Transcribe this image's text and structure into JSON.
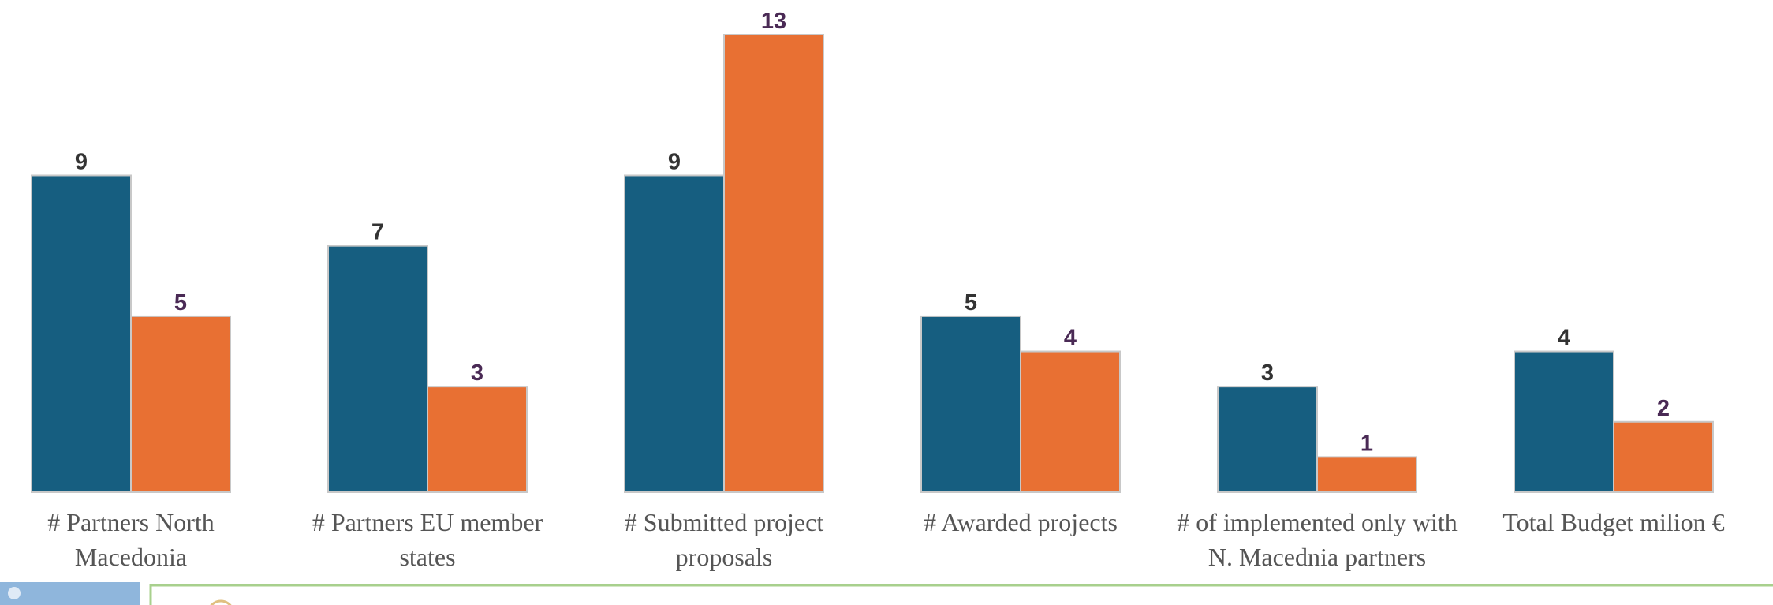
{
  "chart_data": {
    "type": "bar",
    "categories": [
      "# Partners North Macedonia",
      "# Partners EU member states",
      "# Submitted project proposals",
      "# Awarded projects",
      "# of implemented only with N. Macednia partners",
      "Total Budget milion €"
    ],
    "series": [
      {
        "color": "#165e80",
        "values": [
          9,
          7,
          9,
          5,
          3,
          4
        ]
      },
      {
        "color": "#e87033",
        "values": [
          5,
          3,
          13,
          4,
          1,
          2
        ]
      }
    ],
    "ylim": [
      0,
      13
    ]
  }
}
